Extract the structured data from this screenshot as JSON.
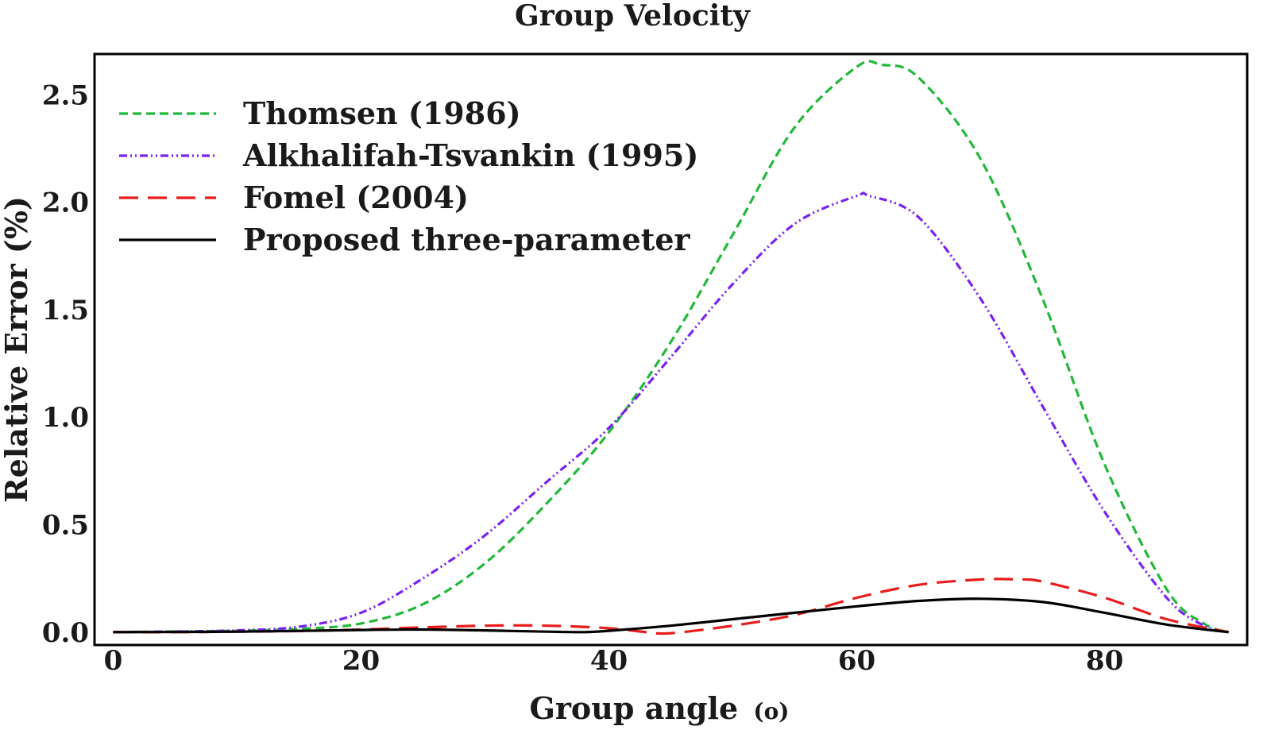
{
  "chart_data": {
    "type": "line",
    "title": "Group Velocity",
    "xlabel": "Group angle",
    "xlabel_unit": "(o)",
    "ylabel": "Relative Error (%)",
    "xlim": [
      -1.5,
      91.5
    ],
    "ylim": [
      -0.06,
      2.69
    ],
    "xticks": [
      0,
      20,
      40,
      60,
      80
    ],
    "xtick_labels": [
      "0",
      "20",
      "40",
      "60",
      "80"
    ],
    "yticks": [
      0.0,
      0.5,
      1.0,
      1.5,
      2.0,
      2.5
    ],
    "ytick_labels": [
      "0.0",
      "0.5",
      "1.0",
      "1.5",
      "2.0",
      "2.5"
    ],
    "grid": false,
    "legend_position": "top-left",
    "series": [
      {
        "name": "Thomsen (1986)",
        "color": "#22b83a",
        "dash": "short-dash",
        "x": [
          0,
          5,
          10,
          15,
          20,
          25,
          30,
          35,
          40,
          45,
          50,
          55,
          60,
          62,
          65,
          70,
          75,
          80,
          85,
          88,
          90
        ],
        "values": [
          0.0,
          0.003,
          0.006,
          0.015,
          0.04,
          0.13,
          0.32,
          0.6,
          0.93,
          1.35,
          1.85,
          2.35,
          2.63,
          2.64,
          2.58,
          2.2,
          1.55,
          0.78,
          0.2,
          0.04,
          0.0
        ]
      },
      {
        "name": "Alkhalifah-Tsvankin (1995)",
        "color": "#7a22f0",
        "dash": "dash-dot-dot",
        "x": [
          0,
          5,
          10,
          15,
          20,
          25,
          30,
          35,
          40,
          45,
          50,
          55,
          60,
          61,
          65,
          70,
          75,
          80,
          85,
          88,
          90
        ],
        "values": [
          0.0,
          0.003,
          0.008,
          0.025,
          0.09,
          0.25,
          0.45,
          0.7,
          0.95,
          1.28,
          1.62,
          1.9,
          2.03,
          2.03,
          1.93,
          1.55,
          1.05,
          0.56,
          0.16,
          0.03,
          0.0
        ]
      },
      {
        "name": "Fomel (2004)",
        "color": "#e81c1c",
        "dash": "long-dash",
        "x": [
          0,
          5,
          10,
          15,
          20,
          25,
          30,
          35,
          40,
          43,
          45,
          50,
          55,
          60,
          65,
          70,
          73,
          75,
          80,
          85,
          90
        ],
        "values": [
          0.0,
          0.0,
          0.002,
          0.005,
          0.012,
          0.022,
          0.03,
          0.03,
          0.018,
          0.0,
          -0.005,
          0.03,
          0.08,
          0.16,
          0.22,
          0.245,
          0.245,
          0.235,
          0.16,
          0.06,
          0.0
        ]
      },
      {
        "name": "Proposed three-parameter",
        "color": "#000000",
        "dash": "solid",
        "x": [
          0,
          10,
          20,
          25,
          30,
          35,
          38,
          40,
          45,
          50,
          55,
          60,
          65,
          70,
          75,
          80,
          85,
          90
        ],
        "values": [
          0.0,
          0.002,
          0.01,
          0.012,
          0.008,
          0.002,
          0.0,
          0.006,
          0.03,
          0.06,
          0.09,
          0.12,
          0.145,
          0.155,
          0.14,
          0.09,
          0.035,
          0.0
        ]
      }
    ]
  }
}
